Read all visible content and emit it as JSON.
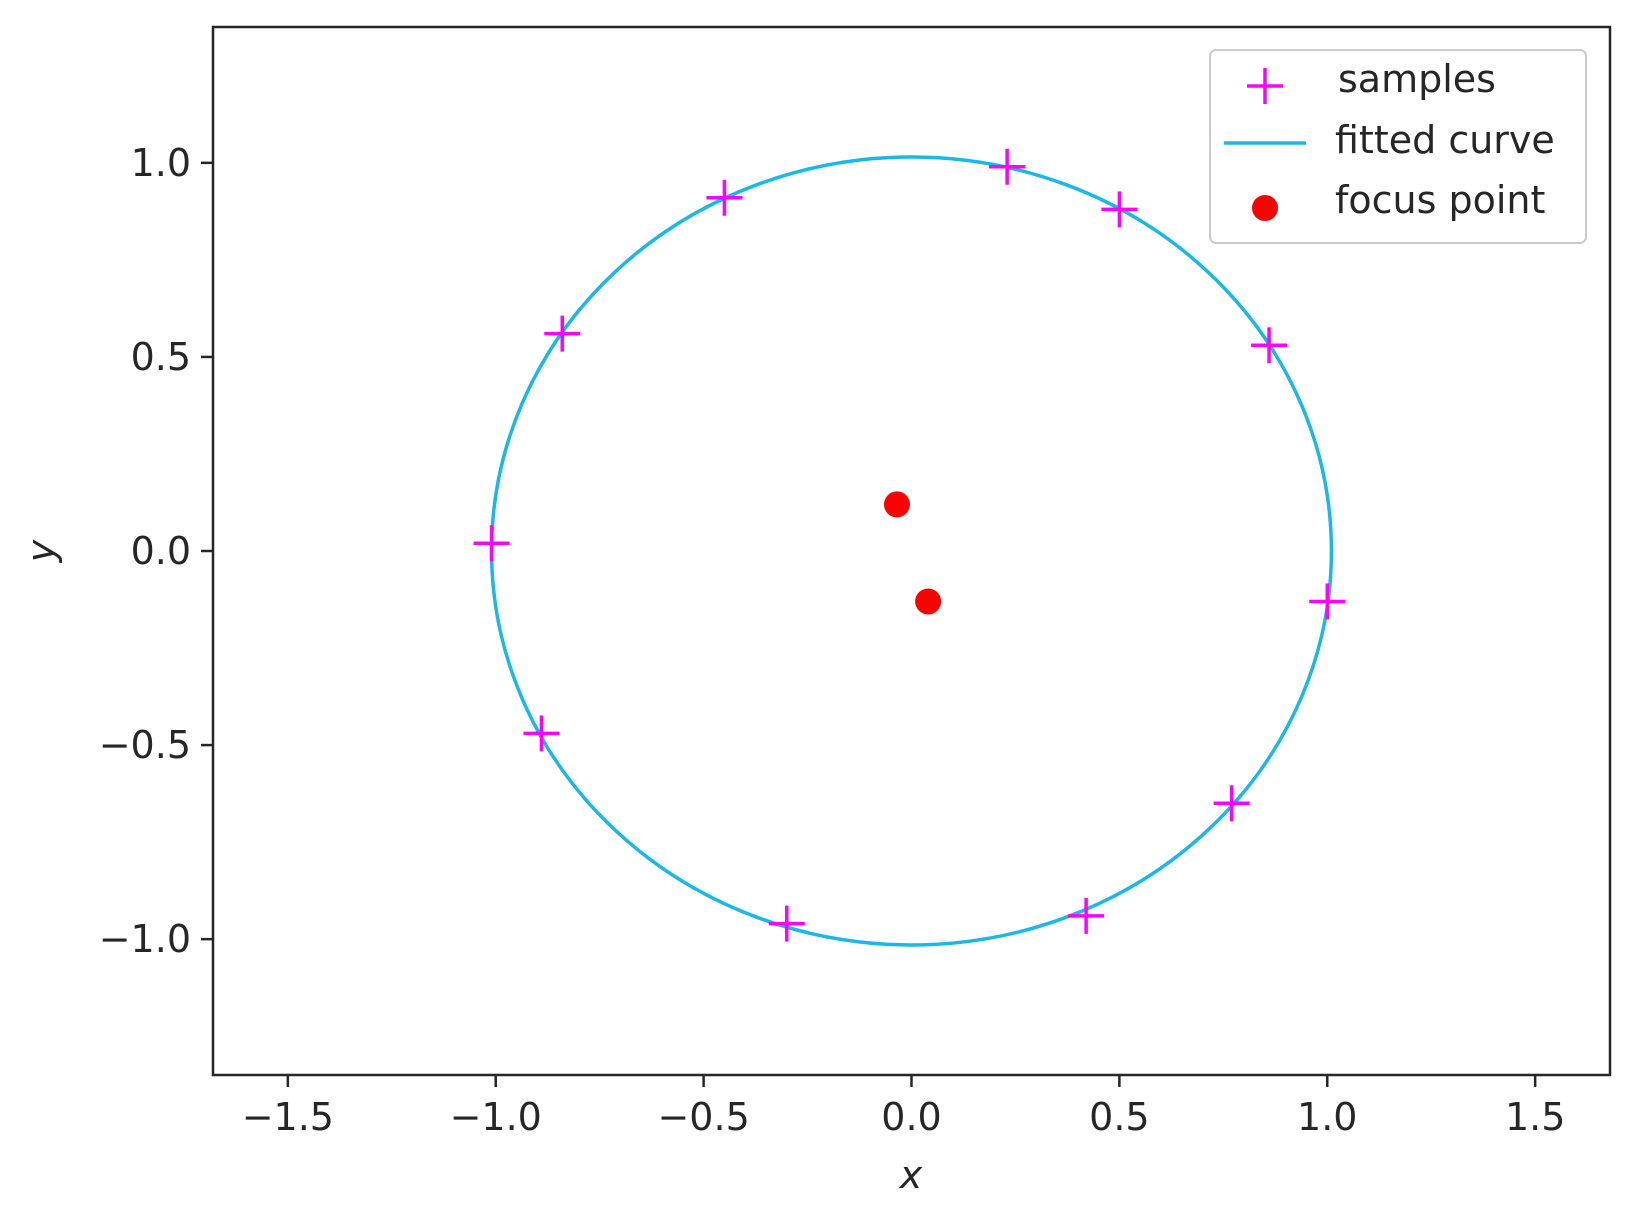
{
  "chart_data": {
    "type": "scatter",
    "title": "",
    "xlabel": "x",
    "ylabel": "y",
    "xlim": [
      -1.68,
      1.68
    ],
    "ylim": [
      -1.35,
      1.35
    ],
    "xticks": [
      -1.5,
      -1.0,
      -0.5,
      0.0,
      0.5,
      1.0,
      1.5
    ],
    "yticks": [
      -1.0,
      -0.5,
      0.0,
      0.5,
      1.0
    ],
    "xtick_labels": [
      "−1.5",
      "−1.0",
      "−0.5",
      "0.0",
      "0.5",
      "1.0",
      "1.5"
    ],
    "ytick_labels": [
      "−1.0",
      "−0.5",
      "0.0",
      "0.5",
      "1.0"
    ],
    "grid": false,
    "legend_position": "top-right",
    "series": [
      {
        "name": "samples",
        "type": "scatter",
        "marker": "plus",
        "color": "#ff00ff",
        "points": [
          [
            0.23,
            0.99
          ],
          [
            0.5,
            0.88
          ],
          [
            0.86,
            0.53
          ],
          [
            1.0,
            -0.13
          ],
          [
            0.77,
            -0.65
          ],
          [
            0.42,
            -0.94
          ],
          [
            -0.3,
            -0.96
          ],
          [
            -0.89,
            -0.47
          ],
          [
            -1.01,
            0.02
          ],
          [
            -0.84,
            0.56
          ],
          [
            -0.45,
            0.91
          ]
        ]
      },
      {
        "name": "fitted curve",
        "type": "line",
        "shape": "ellipse",
        "color": "#1ab8e8",
        "center": [
          0.0,
          0.0
        ],
        "radius_x": 1.01,
        "radius_y": 1.015
      },
      {
        "name": "focus point",
        "type": "scatter",
        "marker": "circle",
        "color": "#ff0000",
        "points": [
          [
            -0.035,
            0.12
          ],
          [
            0.04,
            -0.13
          ]
        ]
      }
    ]
  }
}
